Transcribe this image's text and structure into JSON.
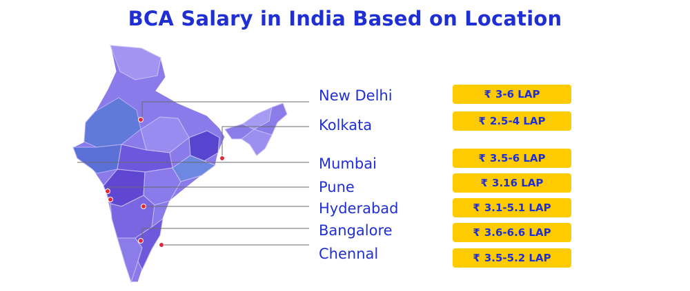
{
  "title": "BCA Salary in India Based on Location",
  "currency_symbol": "₹",
  "colors": {
    "title": "#1f2fd3",
    "badge": "#fecb00",
    "map_light": "#9d8ff0",
    "map_mid": "#7d69e4",
    "map_dark": "#5b45cf",
    "map_blue": "#5b74dc",
    "marker": "#e0293b"
  },
  "locations": [
    {
      "city": "New Delhi",
      "salary": "3-6 LAP"
    },
    {
      "city": "Kolkata",
      "salary": "2.5-4 LAP"
    },
    {
      "city": "Mumbai",
      "salary": "3.5-6 LAP"
    },
    {
      "city": "Pune",
      "salary": "3.16 LAP"
    },
    {
      "city": "Hyderabad",
      "salary": "3.1-5.1 LAP"
    },
    {
      "city": "Bangalore",
      "salary": "3.6-6.6 LAP"
    },
    {
      "city": "Chennal",
      "salary": "3.5-5.2 LAP"
    }
  ]
}
